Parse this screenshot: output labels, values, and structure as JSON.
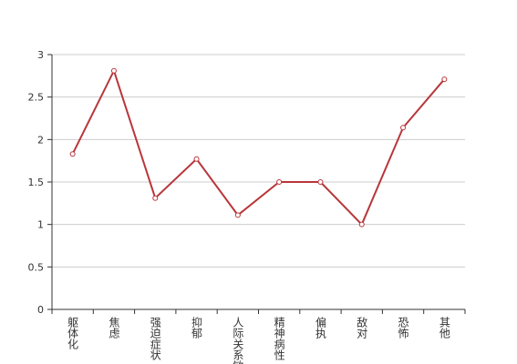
{
  "chart_data": {
    "type": "line",
    "categories": [
      "躯体化",
      "焦虑",
      "强迫症状",
      "抑郁",
      "人际关系敏感",
      "精神病性",
      "偏执",
      "敌对",
      "恐怖",
      "其他"
    ],
    "series": [
      {
        "color": "#b8363a",
        "values": [
          1.83,
          2.81,
          1.31,
          1.77,
          1.11,
          1.5,
          1.5,
          1.0,
          2.14,
          2.71
        ]
      }
    ],
    "ylim": [
      0,
      3
    ],
    "yticks": [
      0,
      0.5,
      1,
      1.5,
      2,
      2.5,
      3
    ],
    "grid": true
  }
}
